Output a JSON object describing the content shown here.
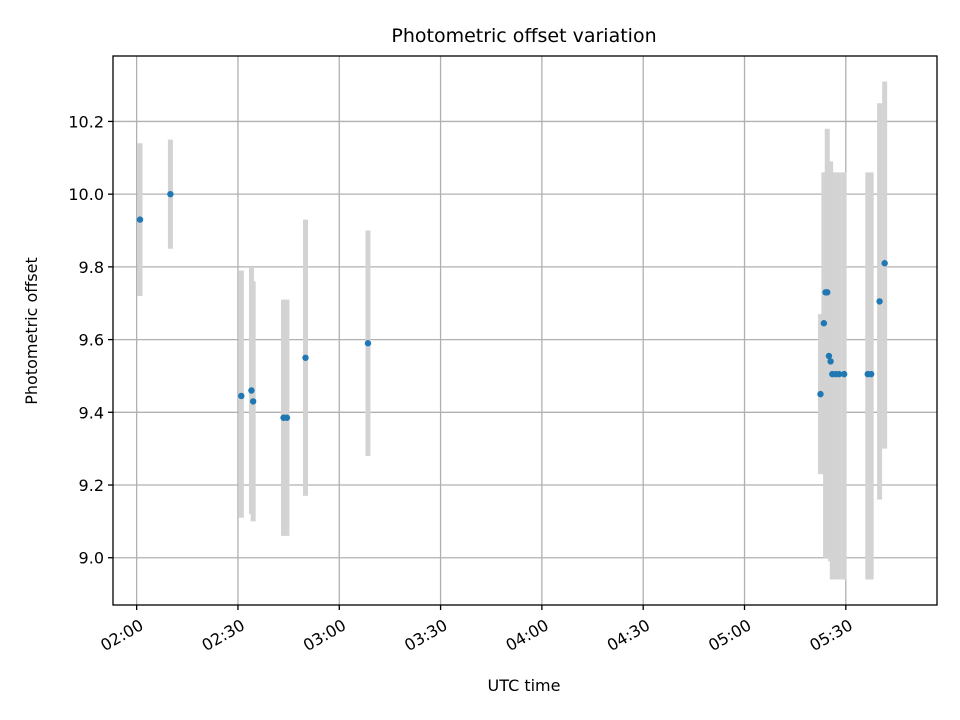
{
  "chart_data": {
    "type": "scatter",
    "title": "Photometric offset variation",
    "xlabel": "UTC time",
    "ylabel": "Photometric offset",
    "x_unit": "UTC time of day (HH:MM)",
    "xlim": [
      "01:53",
      "05:57"
    ],
    "ylim": [
      8.87,
      10.38
    ],
    "x_ticks": [
      "02:00",
      "02:30",
      "03:00",
      "03:30",
      "04:00",
      "04:30",
      "05:00",
      "05:30"
    ],
    "y_ticks": [
      9.0,
      9.2,
      9.4,
      9.6,
      9.8,
      10.0,
      10.2
    ],
    "y_tick_labels": [
      "9.0",
      "9.2",
      "9.4",
      "9.6",
      "9.8",
      "10.0",
      "10.2"
    ],
    "grid": true,
    "marker_color": "#1f77b4",
    "errorbar_color": "#d3d3d3",
    "points": [
      {
        "x": "02:01",
        "y": 9.93,
        "lo": 9.72,
        "hi": 10.14
      },
      {
        "x": "02:10",
        "y": 10.0,
        "lo": 9.85,
        "hi": 10.15
      },
      {
        "x": "02:31",
        "y": 9.445,
        "lo": 9.11,
        "hi": 9.79
      },
      {
        "x": "02:34",
        "y": 9.46,
        "lo": 9.12,
        "hi": 9.8
      },
      {
        "x": "02:34.5",
        "y": 9.43,
        "lo": 9.1,
        "hi": 9.76
      },
      {
        "x": "02:43.5",
        "y": 9.385,
        "lo": 9.06,
        "hi": 9.71
      },
      {
        "x": "02:44.5",
        "y": 9.385,
        "lo": 9.06,
        "hi": 9.71
      },
      {
        "x": "02:50",
        "y": 9.55,
        "lo": 9.17,
        "hi": 9.93
      },
      {
        "x": "03:08.5",
        "y": 9.59,
        "lo": 9.28,
        "hi": 9.9
      },
      {
        "x": "05:22.5",
        "y": 9.45,
        "lo": 9.23,
        "hi": 9.67
      },
      {
        "x": "05:23.5",
        "y": 9.645,
        "lo": 9.23,
        "hi": 10.06
      },
      {
        "x": "05:24",
        "y": 9.73,
        "lo": 9.0,
        "hi": 10.06
      },
      {
        "x": "05:24.5",
        "y": 9.73,
        "lo": 9.0,
        "hi": 10.18
      },
      {
        "x": "05:25",
        "y": 9.555,
        "lo": 9.0,
        "hi": 10.09
      },
      {
        "x": "05:25.5",
        "y": 9.54,
        "lo": 8.99,
        "hi": 10.09
      },
      {
        "x": "05:26",
        "y": 9.505,
        "lo": 8.94,
        "hi": 10.06
      },
      {
        "x": "05:27",
        "y": 9.505,
        "lo": 8.94,
        "hi": 10.06
      },
      {
        "x": "05:28",
        "y": 9.505,
        "lo": 8.94,
        "hi": 10.06
      },
      {
        "x": "05:29.5",
        "y": 9.505,
        "lo": 8.94,
        "hi": 10.06
      },
      {
        "x": "05:36.5",
        "y": 9.505,
        "lo": 8.94,
        "hi": 10.06
      },
      {
        "x": "05:37.5",
        "y": 9.505,
        "lo": 8.94,
        "hi": 10.06
      },
      {
        "x": "05:40",
        "y": 9.705,
        "lo": 9.16,
        "hi": 10.25
      },
      {
        "x": "05:41.5",
        "y": 9.81,
        "lo": 9.3,
        "hi": 10.31
      }
    ]
  }
}
